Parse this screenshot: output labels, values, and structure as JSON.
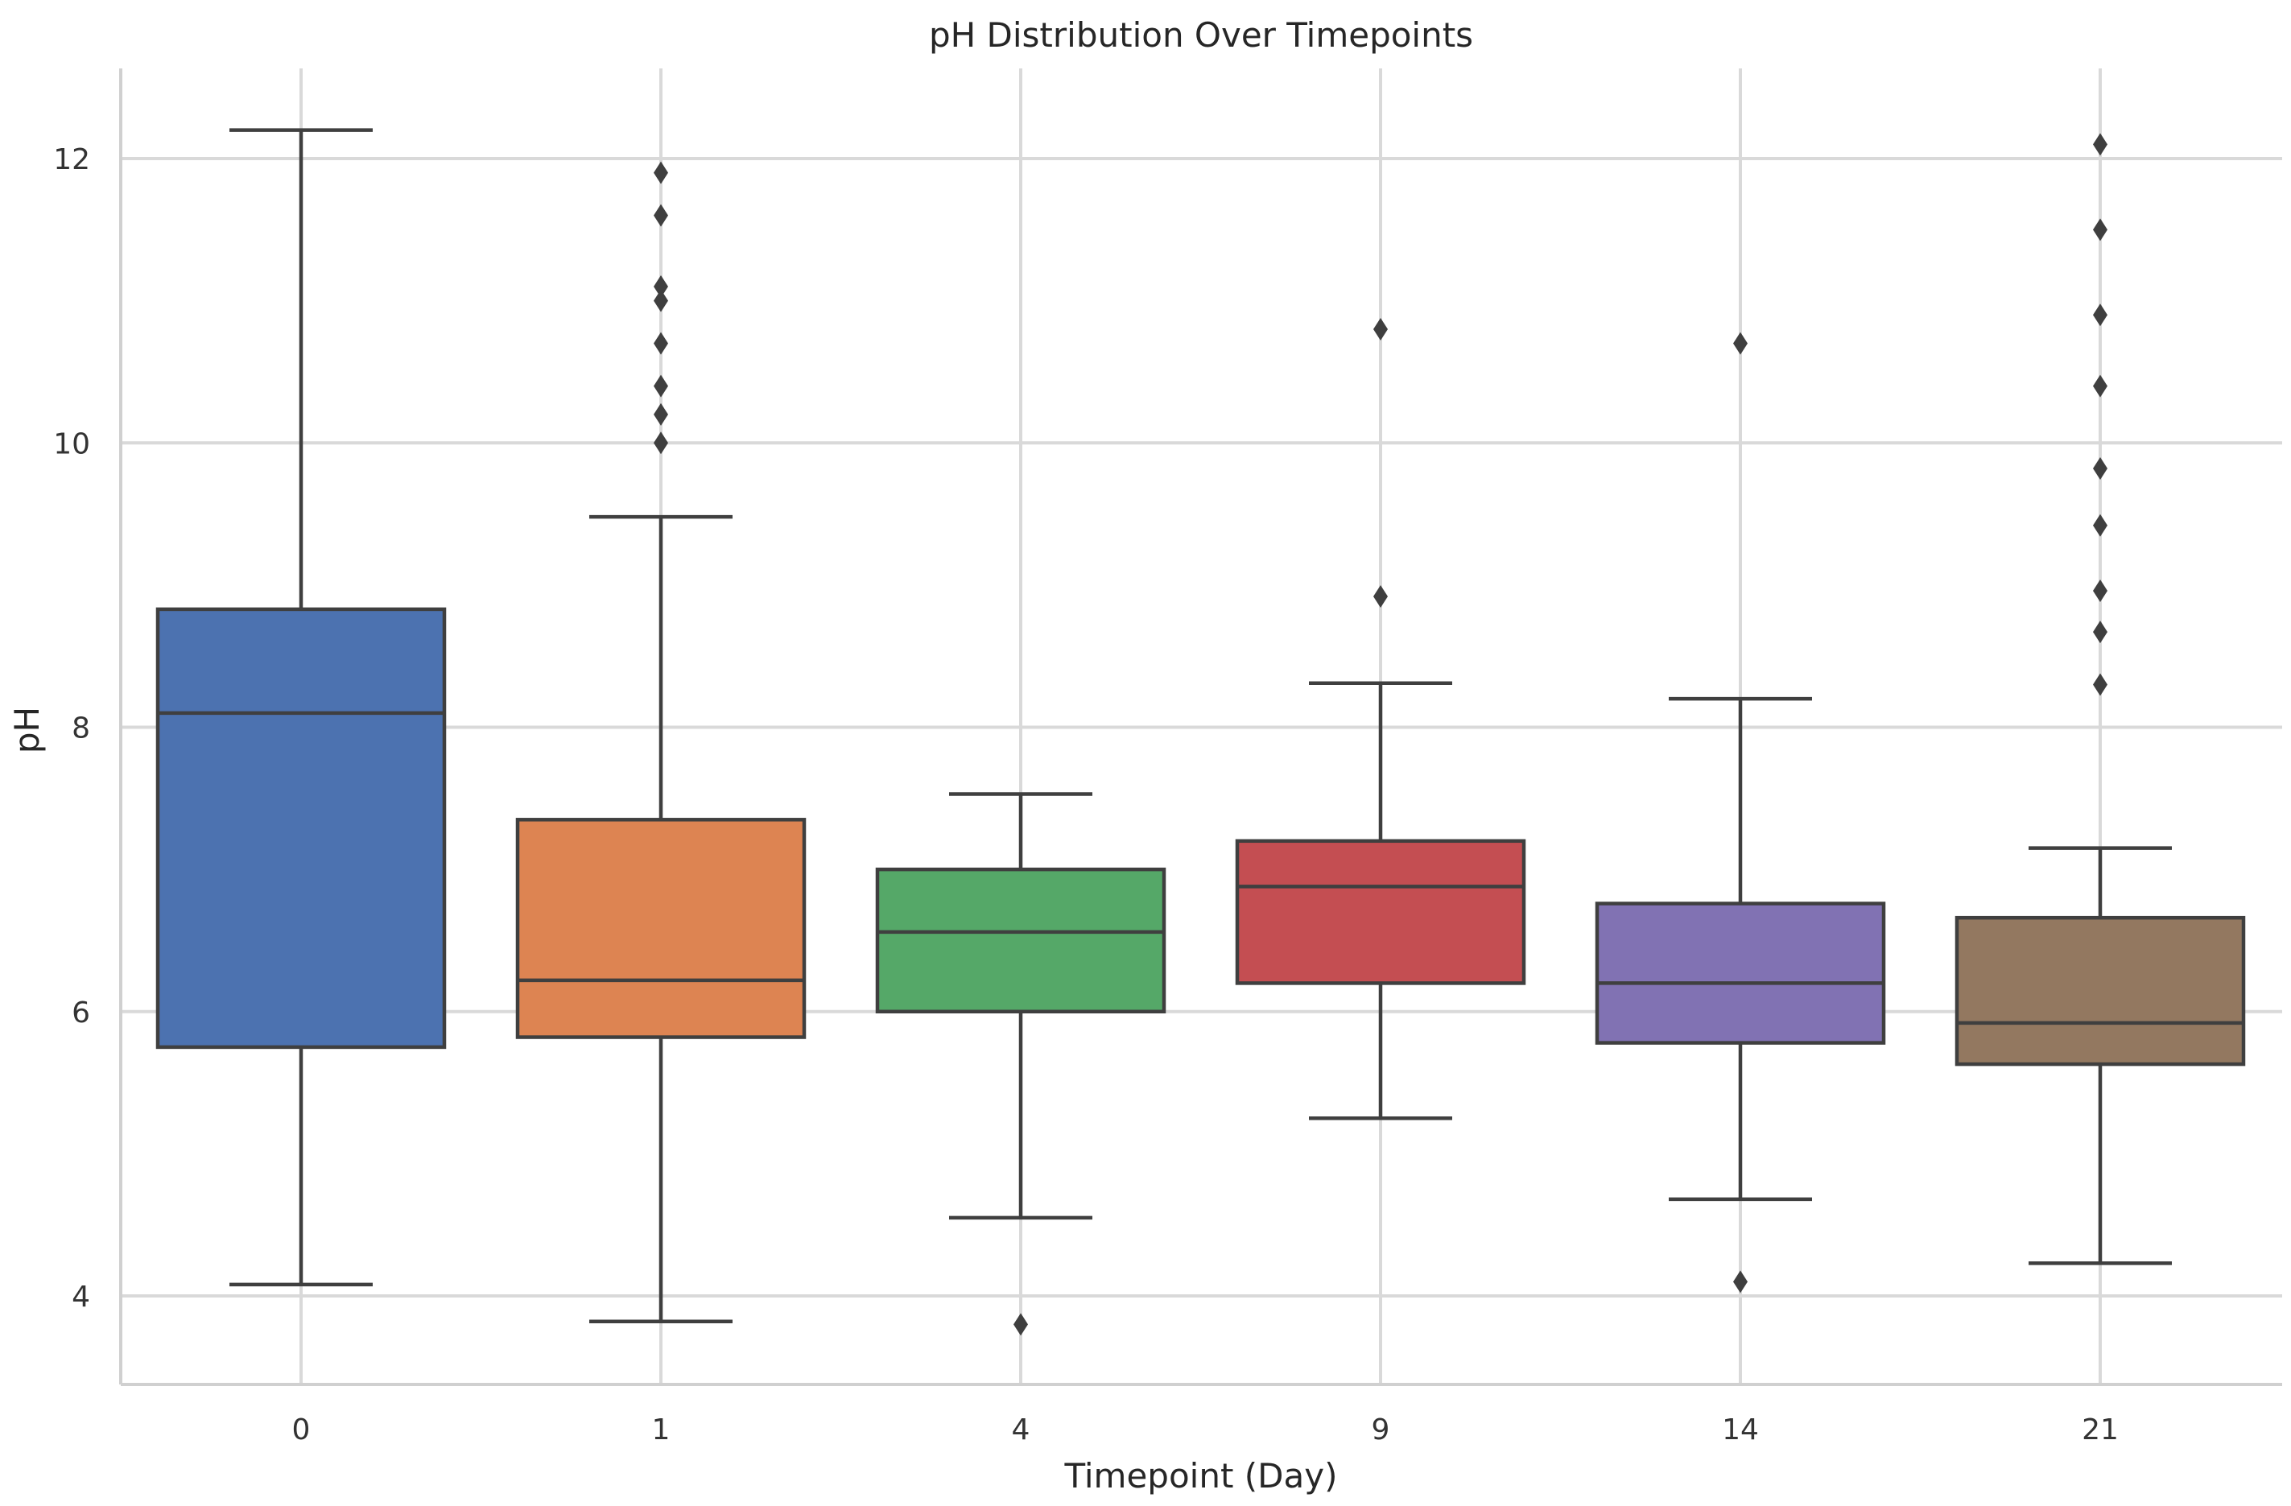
{
  "chart_data": {
    "type": "box",
    "title": "pH Distribution Over Timepoints",
    "xlabel": "Timepoint (Day)",
    "ylabel": "pH",
    "ylim": [
      3.4,
      12.6
    ],
    "yticks": [
      4,
      6,
      8,
      10,
      12
    ],
    "grid": true,
    "categories": [
      "0",
      "1",
      "4",
      "9",
      "14",
      "21"
    ],
    "boxes": [
      {
        "category": "0",
        "color": "#4c72b0",
        "whisker_low": 4.08,
        "q1": 5.75,
        "median": 8.1,
        "q3": 8.83,
        "whisker_high": 12.2,
        "outliers": []
      },
      {
        "category": "1",
        "color": "#dd8452",
        "whisker_low": 3.82,
        "q1": 5.82,
        "median": 6.22,
        "q3": 7.35,
        "whisker_high": 9.48,
        "outliers": [
          10.0,
          10.2,
          10.4,
          10.7,
          11.0,
          11.1,
          11.6,
          11.9
        ]
      },
      {
        "category": "4",
        "color": "#55a868",
        "whisker_low": 4.55,
        "q1": 6.0,
        "median": 6.56,
        "q3": 7.0,
        "whisker_high": 7.53,
        "outliers": [
          3.8
        ]
      },
      {
        "category": "9",
        "color": "#c44e52",
        "whisker_low": 5.25,
        "q1": 6.2,
        "median": 6.88,
        "q3": 7.2,
        "whisker_high": 8.31,
        "outliers": [
          8.92,
          10.8
        ]
      },
      {
        "category": "14",
        "color": "#8172b3",
        "whisker_low": 4.68,
        "q1": 5.78,
        "median": 6.2,
        "q3": 6.76,
        "whisker_high": 8.2,
        "outliers": [
          4.1,
          10.7
        ]
      },
      {
        "category": "21",
        "color": "#937860",
        "whisker_low": 4.23,
        "q1": 5.63,
        "median": 5.92,
        "q3": 6.66,
        "whisker_high": 7.15,
        "outliers": [
          8.3,
          8.67,
          8.96,
          9.42,
          9.82,
          10.4,
          10.9,
          11.5,
          12.1
        ]
      }
    ]
  }
}
